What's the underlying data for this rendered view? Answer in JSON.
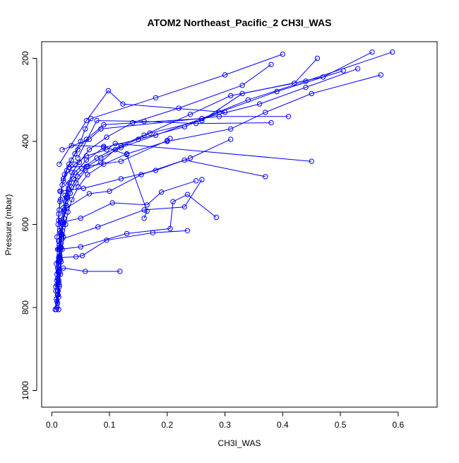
{
  "chart_data": {
    "type": "line",
    "title": "ATOM2 Northeast_Pacific_2 CH3I_WAS",
    "xlabel": "CH3I_WAS",
    "ylabel": "Pressure (mbar)",
    "xlim": [
      -0.0175,
      0.6675
    ],
    "ylim": [
      1040,
      160
    ],
    "y_inverted": true,
    "x_ticks": [
      "0.0",
      "0.1",
      "0.2",
      "0.3",
      "0.4",
      "0.5",
      "0.6"
    ],
    "x_tick_values": [
      0,
      0.1,
      0.2,
      0.3,
      0.4,
      0.5,
      0.6
    ],
    "y_ticks": [
      "200",
      "400",
      "600",
      "800",
      "1000"
    ],
    "y_tick_values": [
      200,
      400,
      600,
      800,
      1000
    ],
    "grid": false,
    "legend": "none",
    "marker": "open-circle",
    "color": "#0000ff",
    "series": [
      {
        "points": [
          [
            0.008,
            805
          ],
          [
            0.009,
            785
          ],
          [
            0.01,
            760
          ],
          [
            0.012,
            735
          ],
          [
            0.012,
            710
          ],
          [
            0.011,
            690
          ],
          [
            0.013,
            660
          ],
          [
            0.012,
            640
          ],
          [
            0.014,
            615
          ],
          [
            0.012,
            590
          ],
          [
            0.013,
            565
          ],
          [
            0.015,
            540
          ],
          [
            0.018,
            505
          ],
          [
            0.022,
            480
          ],
          [
            0.03,
            455
          ],
          [
            0.04,
            430
          ],
          [
            0.05,
            400
          ],
          [
            0.058,
            370
          ],
          [
            0.068,
            345
          ],
          [
            0.18,
            295
          ],
          [
            0.3,
            240
          ],
          [
            0.4,
            190
          ]
        ]
      },
      {
        "points": [
          [
            0.006,
            805
          ],
          [
            0.008,
            780
          ],
          [
            0.007,
            750
          ],
          [
            0.009,
            720
          ],
          [
            0.008,
            695
          ],
          [
            0.01,
            660
          ],
          [
            0.009,
            630
          ],
          [
            0.011,
            600
          ],
          [
            0.012,
            575
          ],
          [
            0.014,
            545
          ],
          [
            0.016,
            520
          ],
          [
            0.02,
            495
          ],
          [
            0.026,
            470
          ],
          [
            0.034,
            445
          ],
          [
            0.045,
            420
          ],
          [
            0.06,
            395
          ],
          [
            0.09,
            360
          ],
          [
            0.26,
            345
          ],
          [
            0.36,
            310
          ],
          [
            0.44,
            270
          ],
          [
            0.53,
            225
          ]
        ]
      },
      {
        "points": [
          [
            0.012,
            805
          ],
          [
            0.011,
            770
          ],
          [
            0.013,
            745
          ],
          [
            0.014,
            715
          ],
          [
            0.015,
            685
          ],
          [
            0.016,
            655
          ],
          [
            0.018,
            625
          ],
          [
            0.02,
            595
          ],
          [
            0.022,
            565
          ],
          [
            0.025,
            535
          ],
          [
            0.028,
            505
          ],
          [
            0.035,
            475
          ],
          [
            0.048,
            450
          ],
          [
            0.065,
            420
          ],
          [
            0.095,
            390
          ],
          [
            0.14,
            355
          ],
          [
            0.22,
            320
          ],
          [
            0.33,
            265
          ],
          [
            0.38,
            215
          ]
        ]
      },
      {
        "points": [
          [
            0.009,
            800
          ],
          [
            0.01,
            770
          ],
          [
            0.012,
            740
          ],
          [
            0.011,
            715
          ],
          [
            0.013,
            690
          ],
          [
            0.015,
            660
          ],
          [
            0.017,
            630
          ],
          [
            0.019,
            600
          ],
          [
            0.021,
            570
          ],
          [
            0.024,
            545
          ],
          [
            0.029,
            515
          ],
          [
            0.037,
            490
          ],
          [
            0.052,
            465
          ],
          [
            0.078,
            440
          ],
          [
            0.12,
            410
          ],
          [
            0.16,
            385
          ],
          [
            0.24,
            335
          ],
          [
            0.31,
            290
          ],
          [
            0.42,
            260
          ],
          [
            0.46,
            200
          ]
        ]
      },
      {
        "points": [
          [
            0.01,
            790
          ],
          [
            0.011,
            760
          ],
          [
            0.01,
            730
          ],
          [
            0.012,
            700
          ],
          [
            0.014,
            675
          ],
          [
            0.016,
            645
          ],
          [
            0.018,
            615
          ],
          [
            0.021,
            585
          ],
          [
            0.026,
            555
          ],
          [
            0.032,
            525
          ],
          [
            0.042,
            500
          ],
          [
            0.058,
            470
          ],
          [
            0.085,
            450
          ],
          [
            0.11,
            420
          ],
          [
            0.17,
            380
          ],
          [
            0.26,
            350
          ],
          [
            0.33,
            285
          ],
          [
            0.47,
            245
          ],
          [
            0.555,
            185
          ]
        ]
      },
      {
        "points": [
          [
            0.007,
            760
          ],
          [
            0.009,
            735
          ],
          [
            0.01,
            705
          ],
          [
            0.012,
            680
          ],
          [
            0.013,
            650
          ],
          [
            0.015,
            620
          ],
          [
            0.017,
            590
          ],
          [
            0.02,
            560
          ],
          [
            0.023,
            530
          ],
          [
            0.03,
            500
          ],
          [
            0.04,
            475
          ],
          [
            0.06,
            445
          ],
          [
            0.09,
            415
          ],
          [
            0.15,
            395
          ],
          [
            0.23,
            365
          ],
          [
            0.29,
            330
          ],
          [
            0.39,
            280
          ],
          [
            0.505,
            230
          ]
        ]
      },
      {
        "points": [
          [
            0.012,
            775
          ],
          [
            0.013,
            750
          ],
          [
            0.015,
            720
          ],
          [
            0.016,
            690
          ],
          [
            0.018,
            660
          ],
          [
            0.02,
            630
          ],
          [
            0.024,
            600
          ],
          [
            0.028,
            570
          ],
          [
            0.035,
            540
          ],
          [
            0.046,
            510
          ],
          [
            0.062,
            480
          ],
          [
            0.09,
            455
          ],
          [
            0.13,
            430
          ],
          [
            0.2,
            400
          ],
          [
            0.31,
            370
          ],
          [
            0.37,
            330
          ],
          [
            0.45,
            285
          ],
          [
            0.57,
            240
          ]
        ]
      },
      {
        "points": [
          [
            0.009,
            745
          ],
          [
            0.011,
            715
          ],
          [
            0.013,
            685
          ],
          [
            0.014,
            655
          ],
          [
            0.016,
            625
          ],
          [
            0.019,
            595
          ],
          [
            0.022,
            565
          ],
          [
            0.027,
            535
          ],
          [
            0.034,
            510
          ],
          [
            0.045,
            485
          ],
          [
            0.062,
            460
          ],
          [
            0.085,
            440
          ],
          [
            0.12,
            415
          ],
          [
            0.18,
            385
          ],
          [
            0.26,
            345
          ],
          [
            0.34,
            300
          ],
          [
            0.44,
            255
          ],
          [
            0.59,
            185
          ]
        ]
      },
      {
        "points": [
          [
            0.012,
            710
          ],
          [
            0.02,
            705
          ],
          [
            0.058,
            713
          ],
          [
            0.118,
            713
          ]
        ]
      },
      {
        "points": [
          [
            0.014,
            680
          ],
          [
            0.042,
            678
          ],
          [
            0.053,
            675
          ],
          [
            0.095,
            638
          ],
          [
            0.175,
            620
          ],
          [
            0.235,
            615
          ]
        ]
      },
      {
        "points": [
          [
            0.012,
            660
          ],
          [
            0.05,
            654
          ],
          [
            0.13,
            622
          ],
          [
            0.205,
            610
          ],
          [
            0.21,
            545
          ],
          [
            0.235,
            528
          ],
          [
            0.285,
            583
          ]
        ]
      },
      {
        "points": [
          [
            0.018,
            635
          ],
          [
            0.08,
            606
          ],
          [
            0.16,
            565
          ],
          [
            0.23,
            558
          ],
          [
            0.26,
            492
          ]
        ]
      },
      {
        "points": [
          [
            0.016,
            595
          ],
          [
            0.05,
            585
          ],
          [
            0.105,
            548
          ],
          [
            0.165,
            553
          ],
          [
            0.19,
            522
          ],
          [
            0.25,
            495
          ]
        ]
      },
      {
        "points": [
          [
            0.026,
            560
          ],
          [
            0.065,
            526
          ],
          [
            0.1,
            520
          ],
          [
            0.155,
            480
          ],
          [
            0.23,
            445
          ],
          [
            0.37,
            485
          ]
        ]
      },
      {
        "points": [
          [
            0.014,
            520
          ],
          [
            0.055,
            513
          ],
          [
            0.12,
            490
          ],
          [
            0.18,
            470
          ],
          [
            0.24,
            440
          ],
          [
            0.31,
            395
          ]
        ]
      },
      {
        "points": [
          [
            0.02,
            490
          ],
          [
            0.04,
            455
          ],
          [
            0.06,
            435
          ],
          [
            0.095,
            420
          ],
          [
            0.11,
            405
          ],
          [
            0.45,
            448
          ]
        ]
      },
      {
        "points": [
          [
            0.034,
            410
          ],
          [
            0.09,
            412
          ],
          [
            0.13,
            432
          ],
          [
            0.165,
            568
          ],
          [
            0.16,
            585
          ]
        ]
      },
      {
        "points": [
          [
            0.03,
            462
          ],
          [
            0.06,
            460
          ],
          [
            0.12,
            448
          ],
          [
            0.2,
            398
          ],
          [
            0.205,
            393
          ]
        ]
      },
      {
        "points": [
          [
            0.013,
            455
          ],
          [
            0.06,
            350
          ],
          [
            0.098,
            278
          ],
          [
            0.123,
            310
          ],
          [
            0.3,
            330
          ]
        ]
      },
      {
        "points": [
          [
            0.045,
            440
          ],
          [
            0.078,
            350
          ],
          [
            0.16,
            352
          ],
          [
            0.25,
            357
          ],
          [
            0.38,
            355
          ]
        ]
      },
      {
        "points": [
          [
            0.018,
            420
          ],
          [
            0.065,
            395
          ],
          [
            0.085,
            370
          ],
          [
            0.29,
            340
          ],
          [
            0.41,
            340
          ]
        ]
      }
    ]
  }
}
